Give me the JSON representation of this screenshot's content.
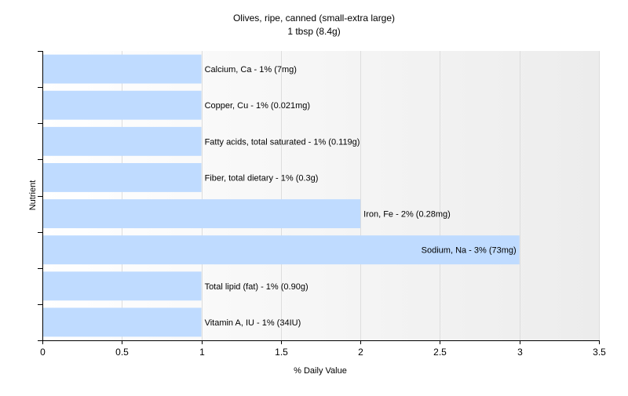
{
  "chart_data": {
    "type": "bar",
    "orientation": "horizontal",
    "title": "Olives, ripe, canned (small-extra large)",
    "subtitle": "1 tbsp (8.4g)",
    "xlabel": "% Daily Value",
    "ylabel": "Nutrient",
    "xlim": [
      0,
      3.5
    ],
    "xticks": [
      "0",
      "0.5",
      "1",
      "1.5",
      "2",
      "2.5",
      "3",
      "3.5"
    ],
    "grid": true,
    "bar_color": "#bfdbff",
    "categories": [
      "Calcium, Ca - 1% (7mg)",
      "Copper, Cu - 1% (0.021mg)",
      "Fatty acids, total saturated - 1% (0.119g)",
      "Fiber, total dietary - 1% (0.3g)",
      "Iron, Fe - 2% (0.28mg)",
      "Sodium, Na - 3% (73mg)",
      "Total lipid (fat) - 1% (0.90g)",
      "Vitamin A, IU - 1% (34IU)"
    ],
    "values": [
      1,
      1,
      1,
      1,
      2,
      3,
      1,
      1
    ]
  }
}
